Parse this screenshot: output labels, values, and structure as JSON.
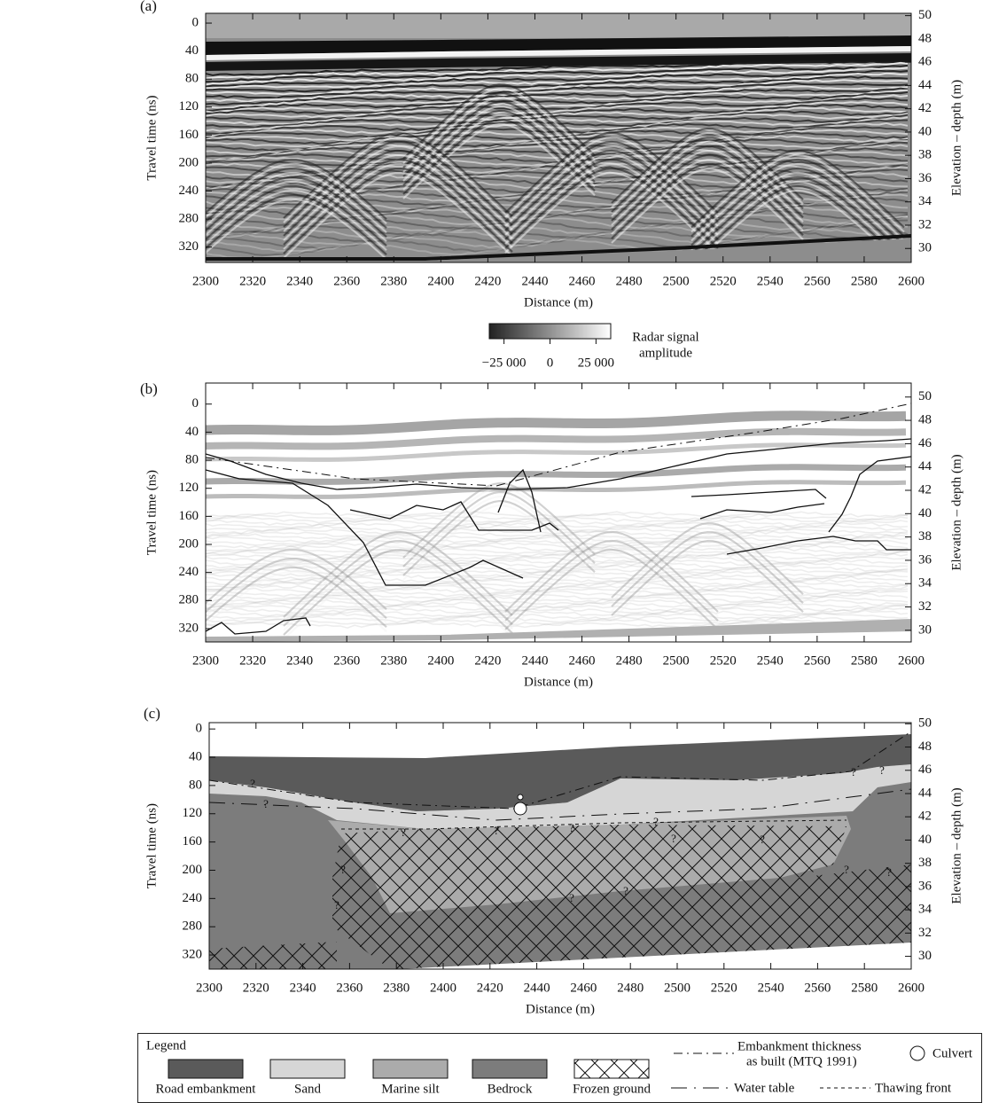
{
  "chart_data": [
    {
      "type": "radargram",
      "panel_label": "(a)",
      "xlabel": "Distance (m)",
      "ylabel": "Travel time (ns)",
      "y2label": "Elevation – depth (m)",
      "xlim": [
        2300,
        2600
      ],
      "xticks": [
        2300,
        2320,
        2340,
        2360,
        2380,
        2400,
        2420,
        2440,
        2460,
        2480,
        2500,
        2520,
        2540,
        2560,
        2580,
        2600
      ],
      "ylim": [
        -14,
        342
      ],
      "y_inverted": true,
      "yticks": [
        0,
        40,
        80,
        120,
        160,
        200,
        240,
        280,
        320
      ],
      "y2lim": [
        28.8,
        50.2
      ],
      "y2ticks": [
        30,
        32,
        34,
        36,
        38,
        40,
        42,
        44,
        46,
        48,
        50
      ],
      "colorbar": {
        "label": [
          "Radar signal",
          "amplitude"
        ],
        "clim": [
          -33000,
          33000
        ],
        "colors": [
          "#222222",
          "#ffffff"
        ],
        "ticks": [
          {
            "value": -25000,
            "label": "−25 000"
          },
          0,
          {
            "value": 25000,
            "label": "25 000"
          }
        ]
      }
    },
    {
      "type": "interpreted-radargram",
      "panel_label": "(b)",
      "xlabel": "Distance (m)",
      "ylabel": "Travel time (ns)",
      "y2label": "Elevation – depth (m)",
      "xlim": [
        2300,
        2600
      ],
      "xticks": [
        2300,
        2320,
        2340,
        2360,
        2380,
        2400,
        2420,
        2440,
        2460,
        2480,
        2500,
        2520,
        2540,
        2560,
        2580,
        2600
      ],
      "ylim": [
        -30,
        339
      ],
      "y_inverted": true,
      "yticks": [
        0,
        40,
        80,
        120,
        160,
        200,
        240,
        280,
        320
      ],
      "y2lim": [
        29.0,
        51.2
      ],
      "y2ticks": [
        30,
        32,
        34,
        36,
        38,
        40,
        42,
        44,
        46,
        48,
        50
      ]
    },
    {
      "type": "section",
      "panel_label": "(c)",
      "xlabel": "Distance (m)",
      "ylabel": "Travel time (ns)",
      "y2label": "Elevation – depth (m)",
      "xlim": [
        2300,
        2600
      ],
      "xticks": [
        2300,
        2320,
        2340,
        2360,
        2380,
        2400,
        2420,
        2440,
        2460,
        2480,
        2500,
        2520,
        2540,
        2560,
        2580,
        2600
      ],
      "ylim": [
        -9,
        340
      ],
      "y_inverted": true,
      "yticks": [
        0,
        40,
        80,
        120,
        160,
        200,
        240,
        280,
        320
      ],
      "y2lim": [
        28.9,
        50.1
      ],
      "y2ticks": [
        30,
        32,
        34,
        36,
        38,
        40,
        42,
        44,
        46,
        48,
        50
      ],
      "annotations": [
        "?",
        "?",
        "?",
        "?",
        "?",
        "?",
        "?",
        "?",
        "?",
        "?",
        "?",
        "?",
        "?",
        "?",
        "?",
        "?"
      ]
    }
  ],
  "legend": {
    "title": "Legend",
    "items": [
      {
        "label": "Road embankment",
        "color": "#5a5a5a"
      },
      {
        "label": "Sand",
        "color": "#d6d6d6"
      },
      {
        "label": "Marine silt",
        "color": "#ababab"
      },
      {
        "label": "Bedrock",
        "color": "#7c7c7c"
      },
      {
        "label": "Frozen ground",
        "color": "#ffffff",
        "hatch": true
      }
    ],
    "lines": [
      {
        "label": [
          "Embankment thickness",
          "as built (MTQ 1991)"
        ]
      },
      {
        "label": "Culvert"
      },
      {
        "label": "Water table"
      },
      {
        "label": "Thawing front"
      }
    ]
  }
}
